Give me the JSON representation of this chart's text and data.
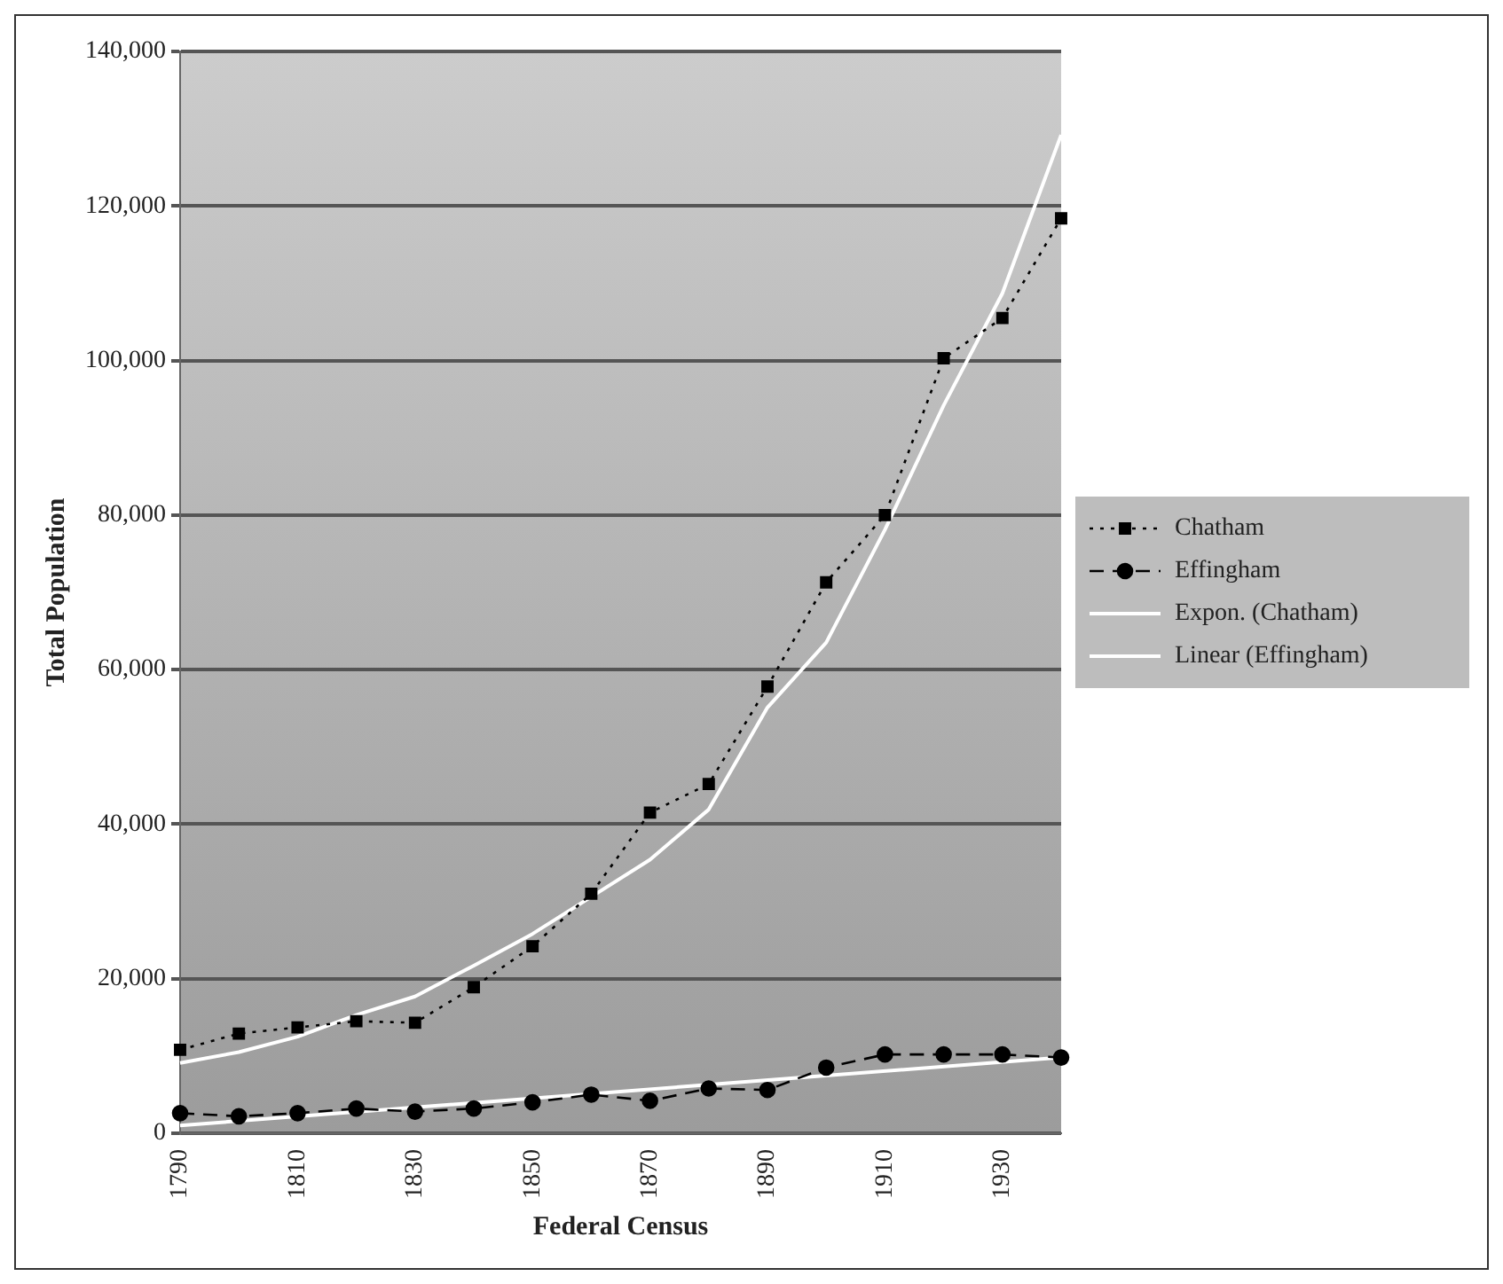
{
  "chart_data": {
    "type": "line",
    "xlabel": "Federal Census",
    "ylabel": "Total Population",
    "categories": [
      "1790",
      null,
      "1810",
      null,
      "1830",
      null,
      "1850",
      null,
      "1870",
      null,
      "1890",
      null,
      "1910",
      null,
      "1930",
      null
    ],
    "series": [
      {
        "name": "Chatham",
        "color": "#000000",
        "marker": "square",
        "line_style": "dotted",
        "values": [
          10800,
          12900,
          13700,
          14500,
          14300,
          18900,
          24200,
          31000,
          41500,
          45200,
          57800,
          71300,
          80000,
          100300,
          105500,
          118400
        ]
      },
      {
        "name": "Effingham",
        "color": "#000000",
        "marker": "circle",
        "line_style": "dashed",
        "values": [
          2600,
          2200,
          2600,
          3200,
          2800,
          3200,
          4000,
          5000,
          4200,
          5800,
          5600,
          8500,
          10200,
          10200,
          10200,
          9800
        ]
      },
      {
        "name": "Expon. (Chatham)",
        "color": "#ffffff",
        "marker": "none",
        "line_style": "solid",
        "values": [
          9100,
          10500,
          12500,
          15300,
          17700,
          21700,
          25800,
          30600,
          35400,
          41900,
          55100,
          63500,
          78100,
          94200,
          108700,
          129200
        ]
      },
      {
        "name": "Linear (Effingham)",
        "color": "#ffffff",
        "marker": "none",
        "line_style": "solid",
        "values": [
          1000,
          null,
          null,
          null,
          null,
          null,
          null,
          null,
          null,
          null,
          null,
          null,
          null,
          null,
          null,
          9800
        ]
      }
    ],
    "ylim": [
      0,
      140000
    ],
    "yticks": [
      {
        "value": 0,
        "label": "0"
      },
      {
        "value": 20000,
        "label": "20,000"
      },
      {
        "value": 40000,
        "label": "40,000"
      },
      {
        "value": 60000,
        "label": "60,000"
      },
      {
        "value": 80000,
        "label": "80,000"
      },
      {
        "value": 100000,
        "label": "100,000"
      },
      {
        "value": 120000,
        "label": "120,000"
      },
      {
        "value": 140000,
        "label": "140,000"
      }
    ],
    "grid": "y",
    "legend": "right"
  }
}
